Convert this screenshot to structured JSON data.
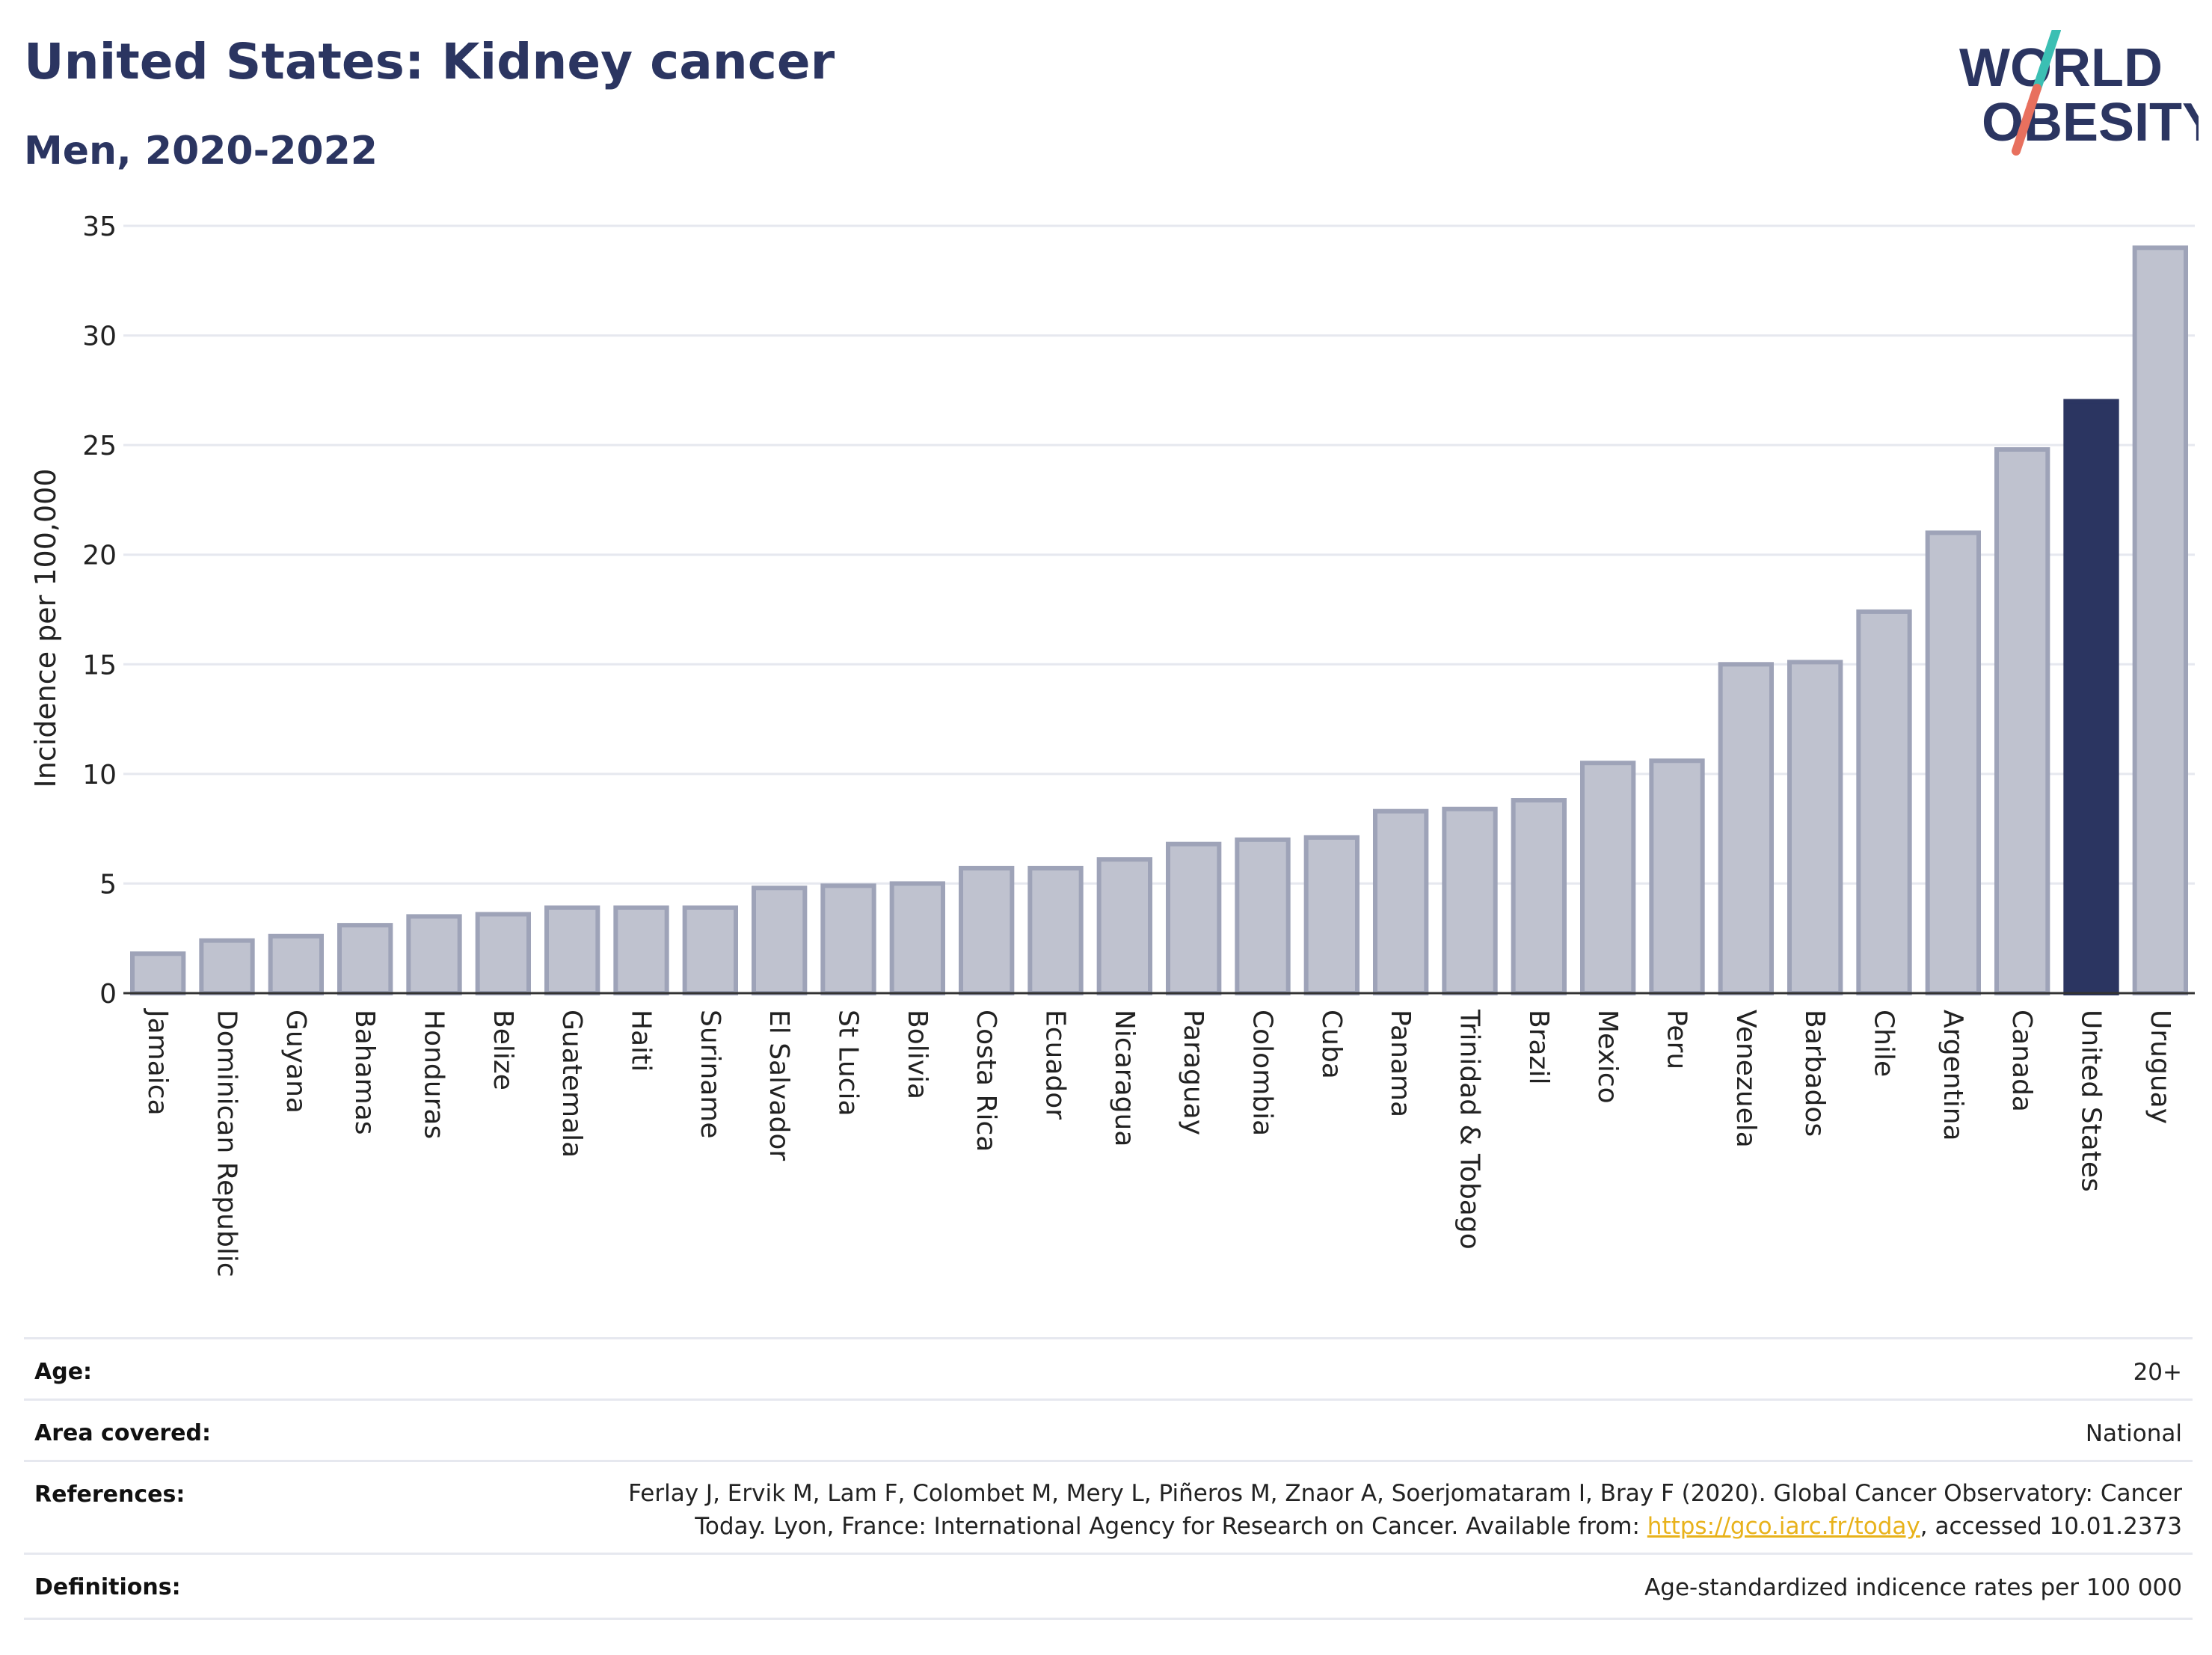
{
  "header": {
    "title": "United States: Kidney cancer",
    "subtitle": "Men, 2020-2022"
  },
  "logo": {
    "line1": "WORLD",
    "line2": "OBESITY",
    "colors": {
      "text": "#2b3561",
      "slash_top": "#3bbfb3",
      "slash_bottom": "#e8705e"
    }
  },
  "colors": {
    "highlight": "#2b3561",
    "bar_fill": "#bfc2cf",
    "bar_edge": "#9ea3b8",
    "grid": "#e6e8ef",
    "axis": "#333333"
  },
  "chart_data": {
    "type": "bar",
    "title": "United States: Kidney cancer",
    "subtitle": "Men, 2020-2022",
    "xlabel": "",
    "ylabel": "Incidence per 100,000",
    "ylim": [
      0,
      35
    ],
    "yticks": [
      0,
      5,
      10,
      15,
      20,
      25,
      30,
      35
    ],
    "grid": true,
    "highlight": "United States",
    "categories": [
      "Jamaica",
      "Dominican Republic",
      "Guyana",
      "Bahamas",
      "Honduras",
      "Belize",
      "Guatemala",
      "Haiti",
      "Suriname",
      "El Salvador",
      "St Lucia",
      "Bolivia",
      "Costa Rica",
      "Ecuador",
      "Nicaragua",
      "Paraguay",
      "Colombia",
      "Cuba",
      "Panama",
      "Trinidad & Tobago",
      "Brazil",
      "Mexico",
      "Peru",
      "Venezuela",
      "Barbados",
      "Chile",
      "Argentina",
      "Canada",
      "United States",
      "Uruguay"
    ],
    "values": [
      1.8,
      2.4,
      2.6,
      3.1,
      3.5,
      3.6,
      3.9,
      3.9,
      3.9,
      4.8,
      4.9,
      5.0,
      5.7,
      5.7,
      6.1,
      6.8,
      7.0,
      7.1,
      8.3,
      8.4,
      8.8,
      10.5,
      10.6,
      15.0,
      15.1,
      17.4,
      21.0,
      24.8,
      27.0,
      34.0
    ]
  },
  "meta": {
    "age": {
      "label": "Age:",
      "value": "20+"
    },
    "area": {
      "label": "Area covered:",
      "value": "National"
    },
    "references": {
      "label": "References:",
      "line1": "Ferlay J, Ervik M, Lam F, Colombet M, Mery L, Piñeros M, Znaor A, Soerjomataram I, Bray F (2020). Global Cancer Observatory: Cancer",
      "line2_pre": "Today. Lyon, France: International Agency for Research on Cancer. Available from: ",
      "link": "https://gco.iarc.fr/today",
      "line2_post": ", accessed 10.01.2373"
    },
    "definitions": {
      "label": "Definitions:",
      "value": "Age-standardized indicence rates per 100 000"
    }
  }
}
